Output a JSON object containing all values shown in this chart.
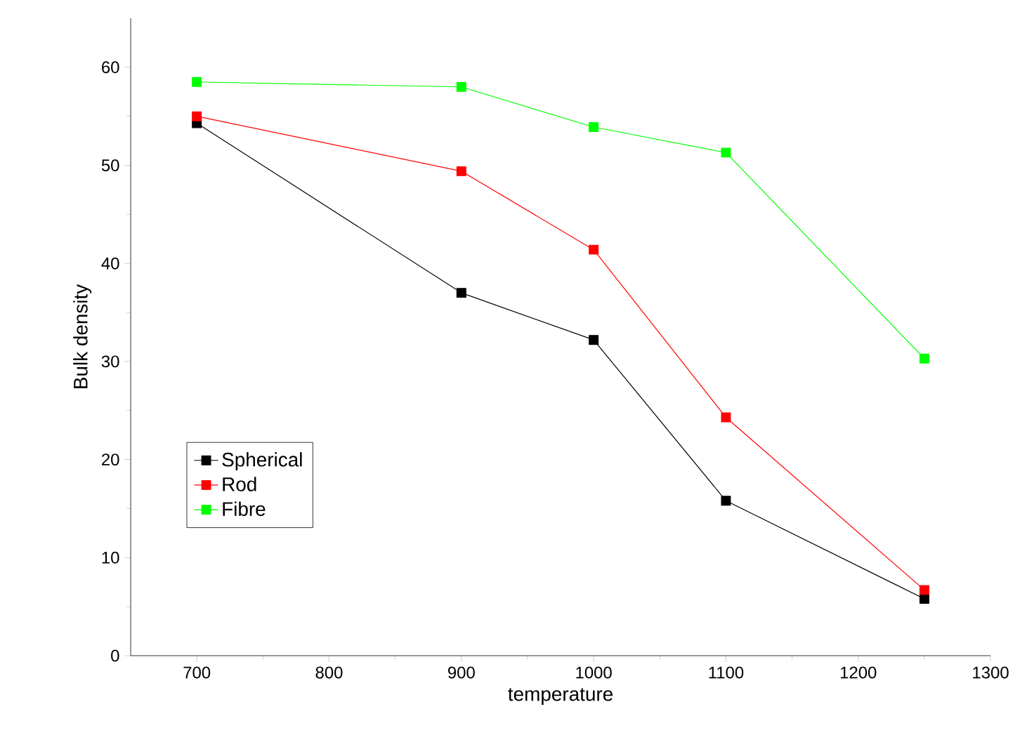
{
  "chart_data": {
    "type": "line",
    "xlabel": "temperature",
    "ylabel": "Bulk density",
    "x": [
      700,
      900,
      1000,
      1100,
      1250
    ],
    "series": [
      {
        "name": "Spherical",
        "color": "#000000",
        "values": [
          54.3,
          37,
          32.2,
          15.8,
          5.8
        ]
      },
      {
        "name": "Rod",
        "color": "#ff0000",
        "values": [
          55,
          49.4,
          41.4,
          24.3,
          6.7
        ]
      },
      {
        "name": "Fibre",
        "color": "#00ff00",
        "values": [
          58.5,
          58,
          53.9,
          51.3,
          30.3
        ]
      }
    ],
    "xlim": [
      650,
      1300
    ],
    "xticks": [
      700,
      800,
      900,
      1000,
      1100,
      1200,
      1300
    ],
    "ylim": [
      0,
      65
    ],
    "yticks": [
      0,
      10,
      20,
      30,
      40,
      50,
      60
    ],
    "grid": false,
    "legend": "bottom left",
    "marker": "square",
    "line_style": "solid"
  }
}
